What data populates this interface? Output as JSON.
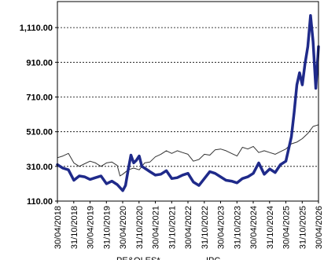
{
  "chart_data": {
    "type": "line",
    "title": "",
    "xlabel": "",
    "ylabel": "",
    "ylim": [
      110,
      1260
    ],
    "xlim": [
      "2018-04-30",
      "2026-04-30"
    ],
    "grid": {
      "horizontal": true,
      "vertical": false
    },
    "legend": {
      "visible": false
    },
    "y_ticks": [
      "110.00",
      "310.00",
      "510.00",
      "710.00",
      "910.00",
      "1,110.00"
    ],
    "y_tick_values": [
      110,
      310,
      510,
      710,
      910,
      1110
    ],
    "x_ticks": [
      "30/04/2018",
      "31/10/2018",
      "30/04/2019",
      "31/10/2019",
      "30/04/2020",
      "31/10/2020",
      "30/04/2021",
      "31/10/2021",
      "30/04/2022",
      "31/10/2022",
      "30/04/2023",
      "31/10/2023",
      "30/04/2024",
      "31/10/2024",
      "30/04/2025",
      "31/10/2025",
      "30/04/2026"
    ],
    "bottom_caption_partial": [
      {
        "text": "PE&OLES*"
      },
      {
        "text": "IPC"
      }
    ],
    "series": [
      {
        "color": "#1f2a8a",
        "points": [
          [
            "2018-04-30",
            320
          ],
          [
            "2018-06-30",
            300
          ],
          [
            "2018-08-31",
            290
          ],
          [
            "2018-10-31",
            230
          ],
          [
            "2018-12-31",
            255
          ],
          [
            "2019-02-28",
            250
          ],
          [
            "2019-04-30",
            235
          ],
          [
            "2019-06-30",
            245
          ],
          [
            "2019-08-31",
            255
          ],
          [
            "2019-10-31",
            210
          ],
          [
            "2019-12-31",
            225
          ],
          [
            "2020-02-29",
            205
          ],
          [
            "2020-04-30",
            170
          ],
          [
            "2020-05-31",
            200
          ],
          [
            "2020-06-30",
            290
          ],
          [
            "2020-07-31",
            375
          ],
          [
            "2020-08-31",
            330
          ],
          [
            "2020-09-30",
            345
          ],
          [
            "2020-10-31",
            370
          ],
          [
            "2020-11-30",
            310
          ],
          [
            "2020-12-31",
            300
          ],
          [
            "2021-02-28",
            280
          ],
          [
            "2021-04-30",
            260
          ],
          [
            "2021-06-30",
            265
          ],
          [
            "2021-08-31",
            285
          ],
          [
            "2021-10-31",
            240
          ],
          [
            "2021-12-31",
            245
          ],
          [
            "2022-02-28",
            260
          ],
          [
            "2022-04-30",
            270
          ],
          [
            "2022-06-30",
            220
          ],
          [
            "2022-08-31",
            200
          ],
          [
            "2022-10-31",
            240
          ],
          [
            "2022-12-31",
            280
          ],
          [
            "2023-02-28",
            270
          ],
          [
            "2023-04-30",
            250
          ],
          [
            "2023-06-30",
            230
          ],
          [
            "2023-08-31",
            225
          ],
          [
            "2023-10-31",
            215
          ],
          [
            "2023-12-31",
            240
          ],
          [
            "2024-02-29",
            250
          ],
          [
            "2024-04-30",
            270
          ],
          [
            "2024-06-30",
            330
          ],
          [
            "2024-08-31",
            265
          ],
          [
            "2024-10-31",
            295
          ],
          [
            "2024-12-31",
            275
          ],
          [
            "2025-02-28",
            320
          ],
          [
            "2025-04-30",
            340
          ],
          [
            "2025-06-30",
            480
          ],
          [
            "2025-07-31",
            620
          ],
          [
            "2025-08-31",
            780
          ],
          [
            "2025-09-30",
            850
          ],
          [
            "2025-10-31",
            780
          ],
          [
            "2025-11-30",
            900
          ],
          [
            "2025-12-31",
            1000
          ],
          [
            "2026-01-31",
            1180
          ],
          [
            "2026-02-28",
            1030
          ],
          [
            "2026-03-31",
            760
          ],
          [
            "2026-04-30",
            1000
          ]
        ]
      },
      {
        "color": "#333333",
        "points": [
          [
            "2018-04-30",
            360
          ],
          [
            "2018-06-30",
            370
          ],
          [
            "2018-08-31",
            385
          ],
          [
            "2018-10-31",
            330
          ],
          [
            "2018-12-31",
            310
          ],
          [
            "2019-02-28",
            325
          ],
          [
            "2019-04-30",
            340
          ],
          [
            "2019-06-30",
            330
          ],
          [
            "2019-08-31",
            310
          ],
          [
            "2019-10-31",
            330
          ],
          [
            "2019-12-31",
            335
          ],
          [
            "2020-02-29",
            315
          ],
          [
            "2020-03-31",
            255
          ],
          [
            "2020-04-30",
            265
          ],
          [
            "2020-06-30",
            290
          ],
          [
            "2020-08-31",
            300
          ],
          [
            "2020-10-31",
            290
          ],
          [
            "2020-12-31",
            330
          ],
          [
            "2021-02-28",
            335
          ],
          [
            "2021-04-30",
            365
          ],
          [
            "2021-06-30",
            380
          ],
          [
            "2021-08-31",
            400
          ],
          [
            "2021-10-31",
            385
          ],
          [
            "2021-12-31",
            400
          ],
          [
            "2022-02-28",
            390
          ],
          [
            "2022-04-30",
            380
          ],
          [
            "2022-06-30",
            340
          ],
          [
            "2022-08-31",
            350
          ],
          [
            "2022-10-31",
            380
          ],
          [
            "2022-12-31",
            375
          ],
          [
            "2023-02-28",
            405
          ],
          [
            "2023-04-30",
            410
          ],
          [
            "2023-06-30",
            400
          ],
          [
            "2023-08-31",
            385
          ],
          [
            "2023-10-31",
            370
          ],
          [
            "2023-12-31",
            420
          ],
          [
            "2024-02-29",
            410
          ],
          [
            "2024-04-30",
            425
          ],
          [
            "2024-06-30",
            390
          ],
          [
            "2024-08-31",
            400
          ],
          [
            "2024-10-31",
            390
          ],
          [
            "2024-12-31",
            380
          ],
          [
            "2025-02-28",
            395
          ],
          [
            "2025-04-30",
            410
          ],
          [
            "2025-06-30",
            440
          ],
          [
            "2025-08-31",
            450
          ],
          [
            "2025-10-31",
            470
          ],
          [
            "2025-12-31",
            500
          ],
          [
            "2026-02-28",
            540
          ],
          [
            "2026-04-30",
            550
          ]
        ]
      }
    ]
  }
}
